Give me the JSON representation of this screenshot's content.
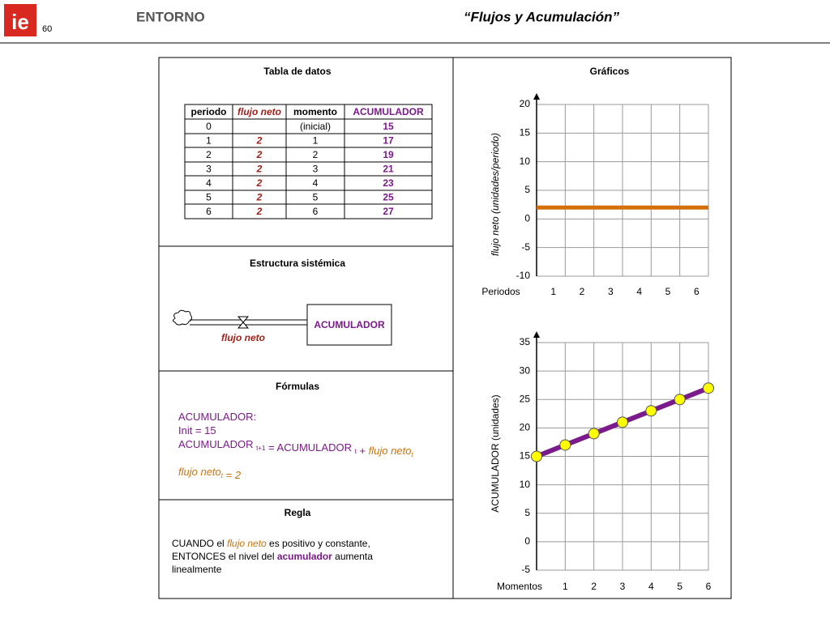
{
  "header": {
    "logo": "ie",
    "page": "60",
    "section": "ENTORNO",
    "title": "“Flujos y Acumulación”"
  },
  "table": {
    "title": "Tabla de datos",
    "columns": [
      "periodo",
      "flujo neto",
      "momento",
      "ACUMULADOR"
    ],
    "rows": [
      [
        0,
        null,
        "(inicial)",
        15
      ],
      [
        1,
        2,
        1,
        17
      ],
      [
        2,
        2,
        2,
        19
      ],
      [
        3,
        2,
        3,
        21
      ],
      [
        4,
        2,
        4,
        23
      ],
      [
        5,
        2,
        5,
        25
      ],
      [
        6,
        2,
        6,
        27
      ]
    ]
  },
  "structure": {
    "title": "Estructura sistémica",
    "stock": "ACUMULADOR",
    "flow": "flujo neto"
  },
  "formulas": {
    "title": "Fórmulas",
    "lines": [
      [
        "ACUMULADOR:"
      ],
      [
        "Init = 15"
      ],
      [
        "ACUMULADOR ",
        "t+1",
        " = ACUMULADOR ",
        "t",
        " + ",
        "flujo neto",
        "t"
      ],
      [
        "flujo neto",
        "t",
        " = 2"
      ]
    ]
  },
  "rule": {
    "title": "Regla",
    "lines": [
      [
        "CUANDO el ",
        "flujo neto",
        " es positivo y constante,"
      ],
      [
        "ENTONCES el nivel del ",
        "acumulador",
        " aumenta"
      ],
      [
        "linealmente"
      ]
    ]
  },
  "charts_title": "Gráficos",
  "chart_data": [
    {
      "type": "step",
      "x_label": "Periodos",
      "y_label": "flujo neto (unidades/periodo)",
      "categories": [
        1,
        2,
        3,
        4,
        5,
        6
      ],
      "values": [
        2,
        2,
        2,
        2,
        2,
        2
      ],
      "color": "#d4700a",
      "ylim": [
        -10,
        20
      ],
      "yticks": [
        -10,
        -5,
        0,
        5,
        10,
        15,
        20
      ],
      "grid": true
    },
    {
      "type": "line",
      "x_label": "Momentos",
      "y_label": "ACUMULADOR (unidades)",
      "x": [
        0,
        1,
        2,
        3,
        4,
        5,
        6
      ],
      "values": [
        15,
        17,
        19,
        21,
        23,
        25,
        27
      ],
      "color": "#7b1a8a",
      "marker_color": "#ffff00",
      "xlim": [
        0,
        6
      ],
      "xticks": [
        1,
        2,
        3,
        4,
        5,
        6
      ],
      "ylim": [
        -5,
        35
      ],
      "yticks": [
        -5,
        0,
        5,
        10,
        15,
        20,
        25,
        30,
        35
      ],
      "grid": true
    }
  ]
}
